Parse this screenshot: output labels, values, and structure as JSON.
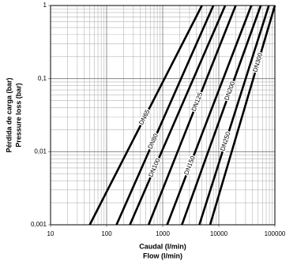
{
  "chart_data": {
    "type": "line",
    "x_label": [
      "Caudal (l/min)",
      "Flow (l/min)"
    ],
    "y_label": [
      "Pérdida de carga (bar)",
      "Pressure loss (bar)"
    ],
    "log_x": true,
    "log_y": true,
    "grid": true,
    "xlim": [
      10,
      100000
    ],
    "ylim": [
      0.001,
      1
    ],
    "xticks": [
      10,
      100,
      1000,
      10000,
      100000
    ],
    "yticks": [
      {
        "value": 0.001,
        "label": "0,001"
      },
      {
        "value": 0.01,
        "label": "0,01"
      },
      {
        "value": 0.1,
        "label": "0,1"
      },
      1
    ],
    "series": [
      {
        "name": "DN65",
        "color": "#000000",
        "x": [
          50,
          5000
        ],
        "values": [
          0.001,
          1
        ]
      },
      {
        "name": "DN80",
        "color": "#000000",
        "x": [
          150,
          8000
        ],
        "values": [
          0.001,
          1
        ]
      },
      {
        "name": "DN100",
        "color": "#000000",
        "x": [
          260,
          13000
        ],
        "values": [
          0.001,
          1
        ]
      },
      {
        "name": "DN125",
        "color": "#000000",
        "x": [
          560,
          20000
        ],
        "values": [
          0.001,
          1
        ]
      },
      {
        "name": "DN150",
        "color": "#000000",
        "x": [
          1200,
          38000
        ],
        "values": [
          0.001,
          1
        ]
      },
      {
        "name": "DN200",
        "color": "#000000",
        "x": [
          2200,
          56000
        ],
        "values": [
          0.001,
          1
        ]
      },
      {
        "name": "DN250",
        "color": "#000000",
        "x": [
          4500,
          78000
        ],
        "values": [
          0.001,
          1
        ]
      },
      {
        "name": "DN300",
        "color": "#000000",
        "x": [
          7000,
          100000
        ],
        "values": [
          0.001,
          1
        ]
      }
    ]
  }
}
